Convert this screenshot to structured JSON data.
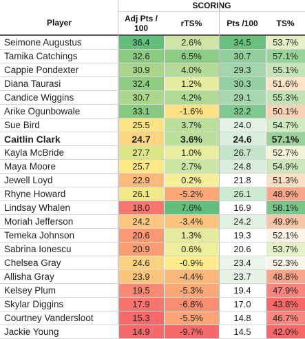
{
  "header": {
    "group_label": "SCORING",
    "columns": [
      "Player",
      "Adj Pts / 100",
      "rTS%",
      "Pts /100",
      "TS%"
    ]
  },
  "chart_data": {
    "type": "table",
    "title": "",
    "columns": [
      "Player",
      "Adj Pts / 100",
      "rTS%",
      "Pts /100",
      "TS%"
    ],
    "highlight_row": "Caitlin Clark",
    "rows": [
      {
        "player": "Seimone Augustus",
        "adj": "36.4",
        "rts": "2.6%",
        "pts": "34.5",
        "ts": "53.7%",
        "colors": [
          "#63be7b",
          "#cde6a6",
          "#69c17e",
          "#e6f0c7"
        ]
      },
      {
        "player": "Tamika Catchings",
        "adj": "32.6",
        "rts": "6.5%",
        "pts": "30.7",
        "ts": "57.1%",
        "colors": [
          "#8ccb82",
          "#8dcc84",
          "#90ce9c",
          "#9ad29a"
        ]
      },
      {
        "player": "Cappie Pondexter",
        "adj": "30.9",
        "rts": "4.0%",
        "pts": "29.3",
        "ts": "55.1%",
        "colors": [
          "#a9d58b",
          "#b4dc98",
          "#a4d6ad",
          "#c6e5b6"
        ]
      },
      {
        "player": "Diana Taurasi",
        "adj": "32.4",
        "rts": "1.2%",
        "pts": "30.3",
        "ts": "51.6%",
        "colors": [
          "#8ecc82",
          "#e5ed9e",
          "#95d0a1",
          "#fde4c7"
        ]
      },
      {
        "player": "Candice Wiggins",
        "adj": "30.7",
        "rts": "4.2%",
        "pts": "29.1",
        "ts": "55.3%",
        "colors": [
          "#abd68b",
          "#b1da97",
          "#a7d7af",
          "#c2e4b4"
        ]
      },
      {
        "player": "Arike Ogunbowale",
        "adj": "33.1",
        "rts": "-1.6%",
        "pts": "32.2",
        "ts": "50.1%",
        "colors": [
          "#86c980",
          "#fde283",
          "#7ec98e",
          "#fad2b6"
        ]
      },
      {
        "player": "Sue Bird",
        "adj": "25.5",
        "rts": "3.7%",
        "pts": "24.0",
        "ts": "54.7%",
        "colors": [
          "#fde483",
          "#badf9b",
          "#e3f2e4",
          "#d1eac0"
        ]
      },
      {
        "player": "Caitlin Clark",
        "adj": "24.7",
        "rts": "3.6%",
        "pts": "24.6",
        "ts": "57.1%",
        "colors": [
          "#fed57f",
          "#bcdf9c",
          "#dcefde",
          "#9ad29a"
        ]
      },
      {
        "player": "Kayla McBride",
        "adj": "27.7",
        "rts": "1.0%",
        "pts": "26.7",
        "ts": "52.7%",
        "colors": [
          "#dbe684",
          "#e9ee9e",
          "#c5e5cb",
          "#f1f4d6"
        ]
      },
      {
        "player": "Maya Moore",
        "adj": "25.7",
        "rts": "2.7%",
        "pts": "24.8",
        "ts": "54.9%",
        "colors": [
          "#fde884",
          "#cae5a4",
          "#daeedc",
          "#cde8bc"
        ]
      },
      {
        "player": "Jewell Loyd",
        "adj": "22.9",
        "rts": "0.2%",
        "pts": "21.8",
        "ts": "51.3%",
        "colors": [
          "#fcb979",
          "#f5ef9a",
          "#ffffff",
          "#fce0c3"
        ]
      },
      {
        "player": "Rhyne Howard",
        "adj": "26.1",
        "rts": "-5.2%",
        "pts": "26.1",
        "ts": "48.9%",
        "colors": [
          "#f2e884",
          "#fba876",
          "#cdeacf",
          "#f8a68a"
        ]
      },
      {
        "player": "Lindsay Whalen",
        "adj": "18.0",
        "rts": "7.6%",
        "pts": "16.9",
        "ts": "58.1%",
        "colors": [
          "#f8766d",
          "#63be7b",
          "#ffffff",
          "#7ac689"
        ]
      },
      {
        "player": "Moriah Jefferson",
        "adj": "24.2",
        "rts": "-3.4%",
        "pts": "24.2",
        "ts": "49.9%",
        "colors": [
          "#fdc87d",
          "#fcc47c",
          "#e1f1e2",
          "#f9c5a8"
        ]
      },
      {
        "player": "Temeka Johnson",
        "adj": "20.6",
        "rts": "1.3%",
        "pts": "19.3",
        "ts": "52.1%",
        "colors": [
          "#fb9874",
          "#e3ec9d",
          "#ffffff",
          "#fdf2e6"
        ]
      },
      {
        "player": "Sabrina Ionescu",
        "adj": "20.9",
        "rts": "0.6%",
        "pts": "20.6",
        "ts": "53.7%",
        "colors": [
          "#fb9d75",
          "#eeee9c",
          "#ffffff",
          "#e6f0c7"
        ]
      },
      {
        "player": "Chelsea Gray",
        "adj": "24.6",
        "rts": "-0.9%",
        "pts": "23.4",
        "ts": "52.3%",
        "colors": [
          "#fdd27f",
          "#feeb89",
          "#ebf5ec",
          "#faf5e8"
        ]
      },
      {
        "player": "Allisha Gray",
        "adj": "23.9",
        "rts": "-4.4%",
        "pts": "23.7",
        "ts": "48.8%",
        "colors": [
          "#fcc57c",
          "#fbb678",
          "#e6f3e7",
          "#f8a58a"
        ]
      },
      {
        "player": "Kelsey Plum",
        "adj": "19.5",
        "rts": "-5.3%",
        "pts": "19.4",
        "ts": "47.9%",
        "colors": [
          "#fa8a71",
          "#fba876",
          "#ffffff",
          "#f8867f"
        ]
      },
      {
        "player": "Skylar Diggins",
        "adj": "17.9",
        "rts": "-6.8%",
        "pts": "17.0",
        "ts": "43.8%",
        "colors": [
          "#f8746d",
          "#f98e72",
          "#ffffff",
          "#f8696b"
        ]
      },
      {
        "player": "Courtney Vandersloot",
        "adj": "15.3",
        "rts": "-5.5%",
        "pts": "14.8",
        "ts": "46.7%",
        "colors": [
          "#f8696b",
          "#fba476",
          "#ffffff",
          "#f8877f"
        ]
      },
      {
        "player": "Jackie Young",
        "adj": "14.9",
        "rts": "-9.7%",
        "pts": "14.5",
        "ts": "42.0%",
        "colors": [
          "#f8696b",
          "#f8696b",
          "#ffffff",
          "#f8696b"
        ]
      }
    ]
  }
}
